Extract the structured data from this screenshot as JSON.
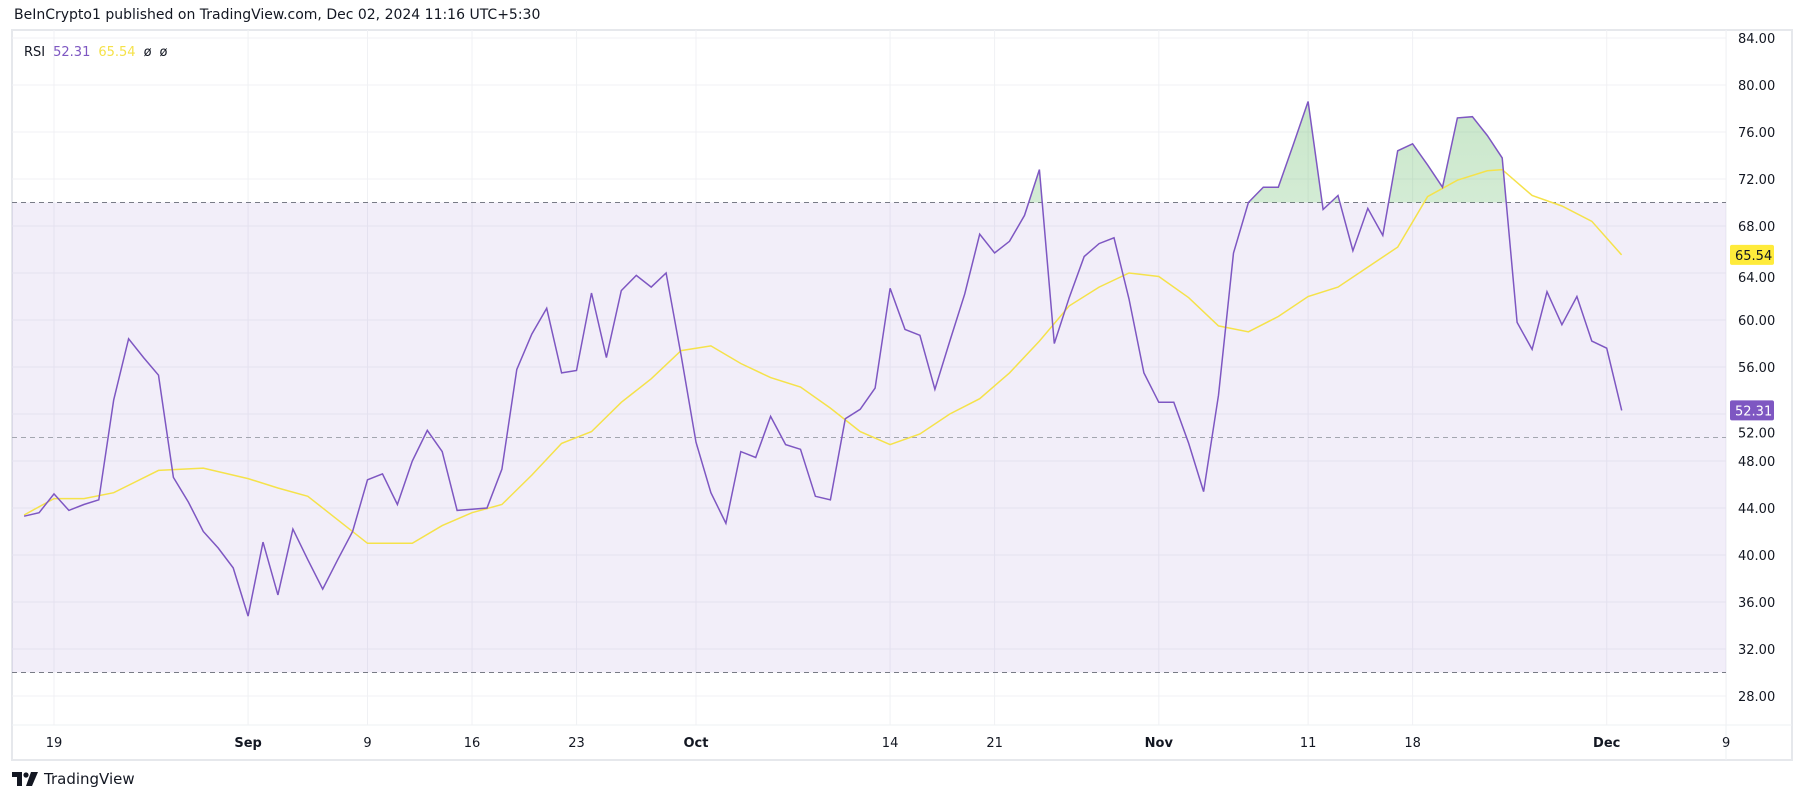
{
  "header": {
    "published": "BeInCrypto1 published on TradingView.com, Dec 02, 2024 11:16 UTC+5:30"
  },
  "legend": {
    "name": "RSI",
    "rsi_value": "52.31",
    "ma_value": "65.54",
    "extra1": "ø",
    "extra2": "ø"
  },
  "footer": {
    "brand": "TradingView"
  },
  "colors": {
    "rsi": "#7E57C2",
    "ma": "#F5E24A",
    "band": "#7E57C2",
    "overbought_fill": "#4CAF50"
  },
  "chart_data": {
    "type": "line",
    "title": "",
    "ylim": [
      26,
      86
    ],
    "yticks": [
      "84.00",
      "80.00",
      "76.00",
      "72.00",
      "68.00",
      "64.00",
      "60.00",
      "56.00",
      "52.00",
      "48.00",
      "44.00",
      "40.00",
      "36.00",
      "32.00",
      "28.00"
    ],
    "xticks": [
      {
        "date": "2024-08-19",
        "label": "19",
        "bold": false
      },
      {
        "date": "2024-09-01",
        "label": "Sep",
        "bold": true
      },
      {
        "date": "2024-09-09",
        "label": "9",
        "bold": false
      },
      {
        "date": "2024-09-16",
        "label": "16",
        "bold": false
      },
      {
        "date": "2024-09-23",
        "label": "23",
        "bold": false
      },
      {
        "date": "2024-10-01",
        "label": "Oct",
        "bold": true
      },
      {
        "date": "2024-10-14",
        "label": "14",
        "bold": false
      },
      {
        "date": "2024-10-21",
        "label": "21",
        "bold": false
      },
      {
        "date": "2024-11-01",
        "label": "Nov",
        "bold": true
      },
      {
        "date": "2024-11-11",
        "label": "11",
        "bold": false
      },
      {
        "date": "2024-11-18",
        "label": "18",
        "bold": false
      },
      {
        "date": "2024-12-01",
        "label": "Dec",
        "bold": true
      },
      {
        "date": "2024-12-09",
        "label": "9",
        "bold": false
      }
    ],
    "levels": {
      "upper": 70,
      "middle": 50,
      "lower": 30
    },
    "grid": true,
    "series": [
      {
        "name": "RSI",
        "start": "2024-08-17",
        "frequency": "daily",
        "values": [
          43.3,
          43.6,
          45.2,
          43.8,
          44.3,
          44.7,
          53.2,
          58.4,
          56.8,
          55.3,
          46.6,
          44.5,
          42,
          40.6,
          38.9,
          34.8,
          41.1,
          36.6,
          42.2,
          39.6,
          37.1,
          39.6,
          42,
          46.4,
          46.9,
          44.3,
          48,
          50.6,
          48.8,
          43.8,
          43.9,
          44,
          47.3,
          55.8,
          58.8,
          61,
          55.5,
          55.7,
          62.3,
          56.8,
          62.5,
          63.8,
          62.8,
          64,
          57,
          49.6,
          45.3,
          42.7,
          48.8,
          48.3,
          51.8,
          49.4,
          49,
          45,
          44.7,
          51.6,
          52.4,
          54.2,
          62.7,
          59.2,
          58.7,
          54.1,
          58.2,
          62.2,
          67.3,
          65.7,
          66.7,
          68.9,
          72.8,
          58,
          61.9,
          65.4,
          66.5,
          67,
          61.8,
          55.5,
          53,
          53,
          49.5,
          45.4,
          53.6,
          65.7,
          70,
          71.3,
          71.3,
          74.9,
          78.6,
          69.4,
          70.6,
          65.9,
          69.5,
          67.2,
          74.4,
          75,
          73.2,
          71.3,
          77.2,
          77.3,
          75.7,
          73.8,
          59.8,
          57.5,
          62.4,
          59.6,
          62,
          58.2,
          57.6,
          52.31
        ],
        "last": "52.31"
      },
      {
        "name": "RSI-based MA",
        "points": [
          [
            "2024-08-17",
            43.4
          ],
          [
            "2024-08-19",
            44.8
          ],
          [
            "2024-08-21",
            44.8
          ],
          [
            "2024-08-23",
            45.3
          ],
          [
            "2024-08-26",
            47.2
          ],
          [
            "2024-08-29",
            47.4
          ],
          [
            "2024-09-01",
            46.5
          ],
          [
            "2024-09-03",
            45.7
          ],
          [
            "2024-09-05",
            45.0
          ],
          [
            "2024-09-07",
            43.0
          ],
          [
            "2024-09-09",
            41.0
          ],
          [
            "2024-09-12",
            41.0
          ],
          [
            "2024-09-14",
            42.5
          ],
          [
            "2024-09-16",
            43.6
          ],
          [
            "2024-09-18",
            44.3
          ],
          [
            "2024-09-20",
            46.8
          ],
          [
            "2024-09-22",
            49.5
          ],
          [
            "2024-09-24",
            50.5
          ],
          [
            "2024-09-26",
            53.0
          ],
          [
            "2024-09-28",
            55.0
          ],
          [
            "2024-09-30",
            57.4
          ],
          [
            "2024-10-02",
            57.8
          ],
          [
            "2024-10-04",
            56.3
          ],
          [
            "2024-10-06",
            55.1
          ],
          [
            "2024-10-08",
            54.3
          ],
          [
            "2024-10-10",
            52.5
          ],
          [
            "2024-10-12",
            50.5
          ],
          [
            "2024-10-14",
            49.4
          ],
          [
            "2024-10-16",
            50.3
          ],
          [
            "2024-10-18",
            52.0
          ],
          [
            "2024-10-20",
            53.3
          ],
          [
            "2024-10-22",
            55.5
          ],
          [
            "2024-10-24",
            58.2
          ],
          [
            "2024-10-26",
            61.2
          ],
          [
            "2024-10-28",
            62.8
          ],
          [
            "2024-10-30",
            64.0
          ],
          [
            "2024-11-01",
            63.7
          ],
          [
            "2024-11-03",
            61.9
          ],
          [
            "2024-11-05",
            59.5
          ],
          [
            "2024-11-07",
            59.0
          ],
          [
            "2024-11-09",
            60.3
          ],
          [
            "2024-11-11",
            62.0
          ],
          [
            "2024-11-13",
            62.8
          ],
          [
            "2024-11-15",
            64.5
          ],
          [
            "2024-11-17",
            66.2
          ],
          [
            "2024-11-19",
            70.5
          ],
          [
            "2024-11-21",
            71.9
          ],
          [
            "2024-11-23",
            72.7
          ],
          [
            "2024-11-24",
            72.8
          ],
          [
            "2024-11-26",
            70.6
          ],
          [
            "2024-11-28",
            69.7
          ],
          [
            "2024-11-30",
            68.4
          ],
          [
            "2024-12-02",
            65.54
          ]
        ],
        "last": "65.54"
      }
    ]
  }
}
